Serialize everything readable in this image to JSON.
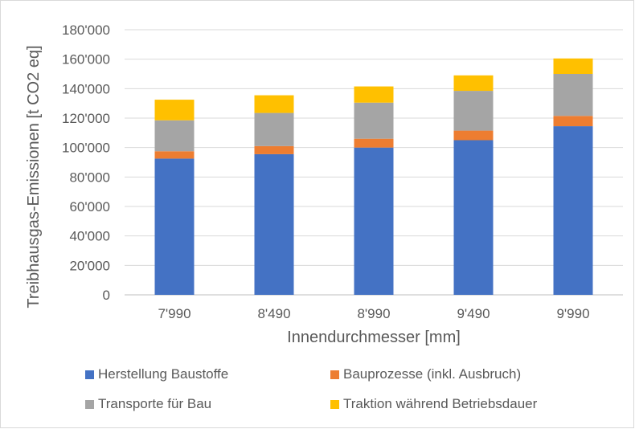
{
  "chart_data": {
    "type": "bar",
    "stacked": true,
    "categories": [
      "7'990",
      "8'490",
      "8'990",
      "9'490",
      "9'990"
    ],
    "series": [
      {
        "name": "Herstellung Baustoffe",
        "color": "#4472C4",
        "values": [
          92500,
          95500,
          100000,
          105000,
          114500
        ]
      },
      {
        "name": "Bauprozesse (inkl. Ausbruch)",
        "color": "#ED7D31",
        "values": [
          5000,
          5500,
          6000,
          6500,
          7000
        ]
      },
      {
        "name": "Transporte für Bau",
        "color": "#A5A5A5",
        "values": [
          21000,
          22500,
          24500,
          27000,
          28500
        ]
      },
      {
        "name": "Traktion während Betriebsdauer",
        "color": "#FFC000",
        "values": [
          14000,
          12000,
          11000,
          10500,
          10500
        ]
      }
    ],
    "xlabel": "Innendurchmesser [mm]",
    "ylabel": "Treibhausgas-Emissionen  [t CO2 eq]",
    "ylim": [
      0,
      180000
    ],
    "yticks": [
      "0",
      "20'000",
      "40'000",
      "60'000",
      "80'000",
      "100'000",
      "120'000",
      "140'000",
      "160'000",
      "180'000"
    ],
    "grid": true,
    "legend_position": "bottom"
  }
}
